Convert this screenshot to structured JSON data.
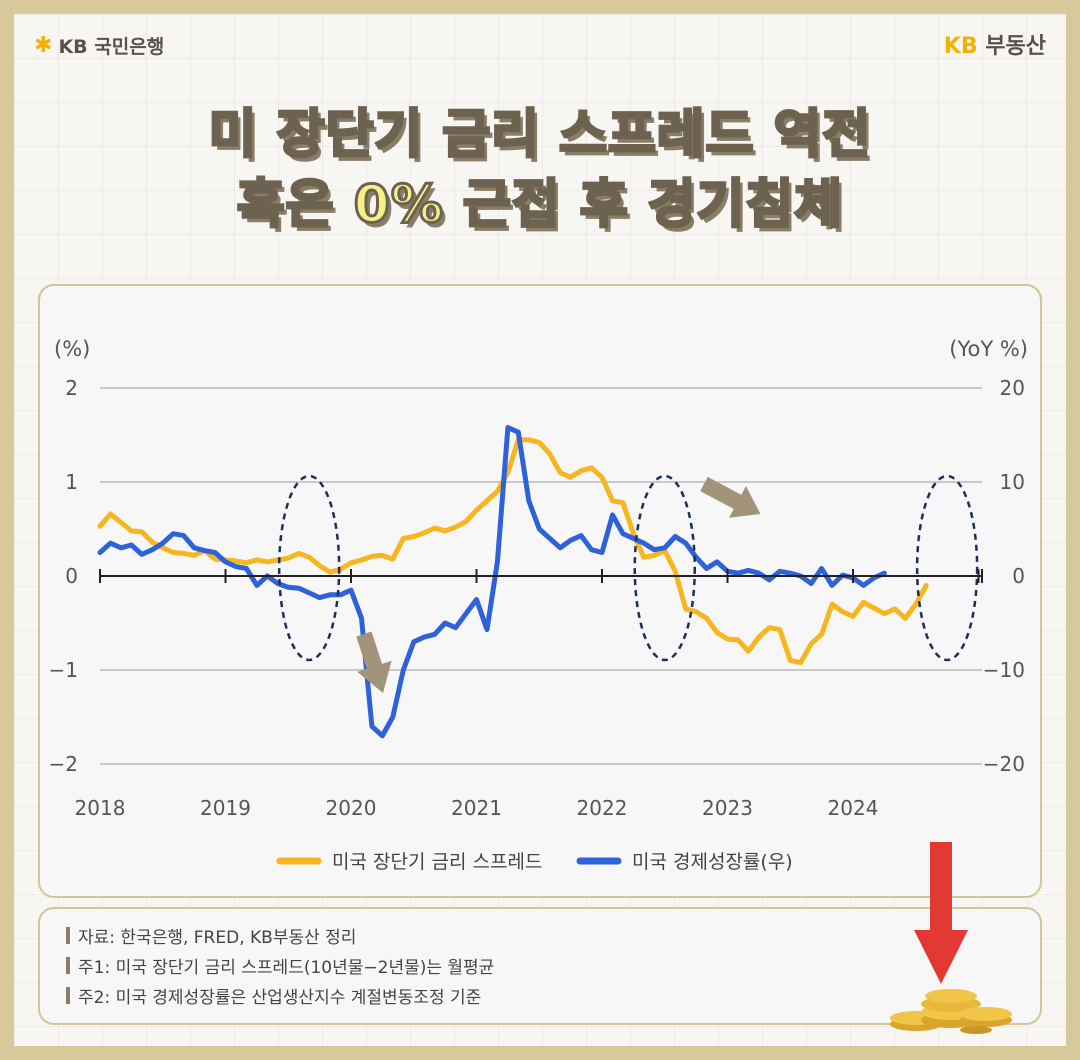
{
  "header": {
    "bank_logo_text": "KB 국민은행",
    "realty_logo_kb": "KB",
    "realty_logo_text": "부동산"
  },
  "title": {
    "line1": "미 장단기 금리 스프레드 역전",
    "line2_pre": "혹은 ",
    "line2_highlight": "0%",
    "line2_post": " 근접 후 경기침체"
  },
  "notes": [
    "자료: 한국은행, FRED, KB부동산 정리",
    "주1: 미국 장단기 금리 스프레드(10년물−2년물)는 월평균",
    "주2: 미국 경제성장률은 산업생산지수 계절변동조정 기준"
  ],
  "colors": {
    "spread": "#f7b51f",
    "growth": "#2f62d8",
    "arrow": "#a3937a",
    "ellipse": "#1d2f57"
  },
  "chart_data": {
    "type": "line",
    "left_axis_unit": "(%)",
    "right_axis_unit": "(YoY %)",
    "left_ylim": [
      -2,
      2
    ],
    "right_ylim": [
      -20,
      20
    ],
    "left_ticks": [
      "2",
      "1",
      "0",
      "−1",
      "−2"
    ],
    "right_ticks": [
      "20",
      "10",
      "0",
      "−10",
      "−20"
    ],
    "x_ticks": [
      "2018",
      "2019",
      "2020",
      "2021",
      "2022",
      "2023",
      "2024"
    ],
    "grid": "horizontal",
    "legend_position": "bottom",
    "series": [
      {
        "name": "미국 장단기 금리 스프레드",
        "axis": "left",
        "x_start": "2018-01",
        "frequency": "monthly",
        "values": [
          0.53,
          0.66,
          0.57,
          0.48,
          0.47,
          0.36,
          0.3,
          0.25,
          0.24,
          0.22,
          0.27,
          0.18,
          0.17,
          0.16,
          0.14,
          0.17,
          0.15,
          0.17,
          0.19,
          0.24,
          0.2,
          0.11,
          0.04,
          0.07,
          0.14,
          0.17,
          0.21,
          0.22,
          0.18,
          0.4,
          0.42,
          0.46,
          0.51,
          0.48,
          0.52,
          0.58,
          0.7,
          0.8,
          0.9,
          1.1,
          1.45,
          1.45,
          1.42,
          1.3,
          1.1,
          1.05,
          1.12,
          1.15,
          1.05,
          0.8,
          0.78,
          0.45,
          0.2,
          0.22,
          0.27,
          0.05,
          -0.35,
          -0.38,
          -0.45,
          -0.6,
          -0.67,
          -0.68,
          -0.8,
          -0.65,
          -0.55,
          -0.57,
          -0.9,
          -0.92,
          -0.72,
          -0.62,
          -0.3,
          -0.38,
          -0.43,
          -0.28,
          -0.34,
          -0.4,
          -0.35,
          -0.45,
          -0.3,
          -0.1
        ]
      },
      {
        "name": "미국 경제성장률(우)",
        "axis": "right",
        "x_start": "2018-01",
        "frequency": "monthly",
        "values": [
          2.5,
          3.5,
          3.0,
          3.3,
          2.3,
          2.8,
          3.5,
          4.5,
          4.3,
          3.0,
          2.7,
          2.5,
          1.5,
          1.0,
          0.8,
          -1.0,
          0.0,
          -0.8,
          -1.2,
          -1.3,
          -1.8,
          -2.3,
          -2.0,
          -2.0,
          -1.5,
          -4.5,
          -16.0,
          -17.0,
          -15.0,
          -10.0,
          -7.0,
          -6.5,
          -6.2,
          -5.0,
          -5.5,
          -4.0,
          -2.5,
          -5.7,
          1.5,
          15.8,
          15.3,
          8.0,
          5.0,
          4.0,
          3.0,
          3.8,
          4.3,
          2.8,
          2.5,
          6.5,
          4.5,
          4.0,
          3.5,
          2.8,
          3.0,
          4.2,
          3.5,
          2.0,
          0.8,
          1.5,
          0.5,
          0.3,
          0.6,
          0.3,
          -0.4,
          0.5,
          0.3,
          0.0,
          -0.8,
          0.8,
          -1.0,
          0.1,
          -0.2,
          -1.0,
          -0.2,
          0.3
        ]
      }
    ],
    "annotations": [
      {
        "type": "dashed-ellipse",
        "around": "2019-09"
      },
      {
        "type": "dashed-ellipse",
        "around": "2022-07"
      },
      {
        "type": "dashed-ellipse",
        "around": "2024-10"
      },
      {
        "type": "arrow",
        "direction": "down",
        "near": "2020-03"
      },
      {
        "type": "arrow",
        "direction": "down-right",
        "near": "2023-02"
      }
    ]
  }
}
